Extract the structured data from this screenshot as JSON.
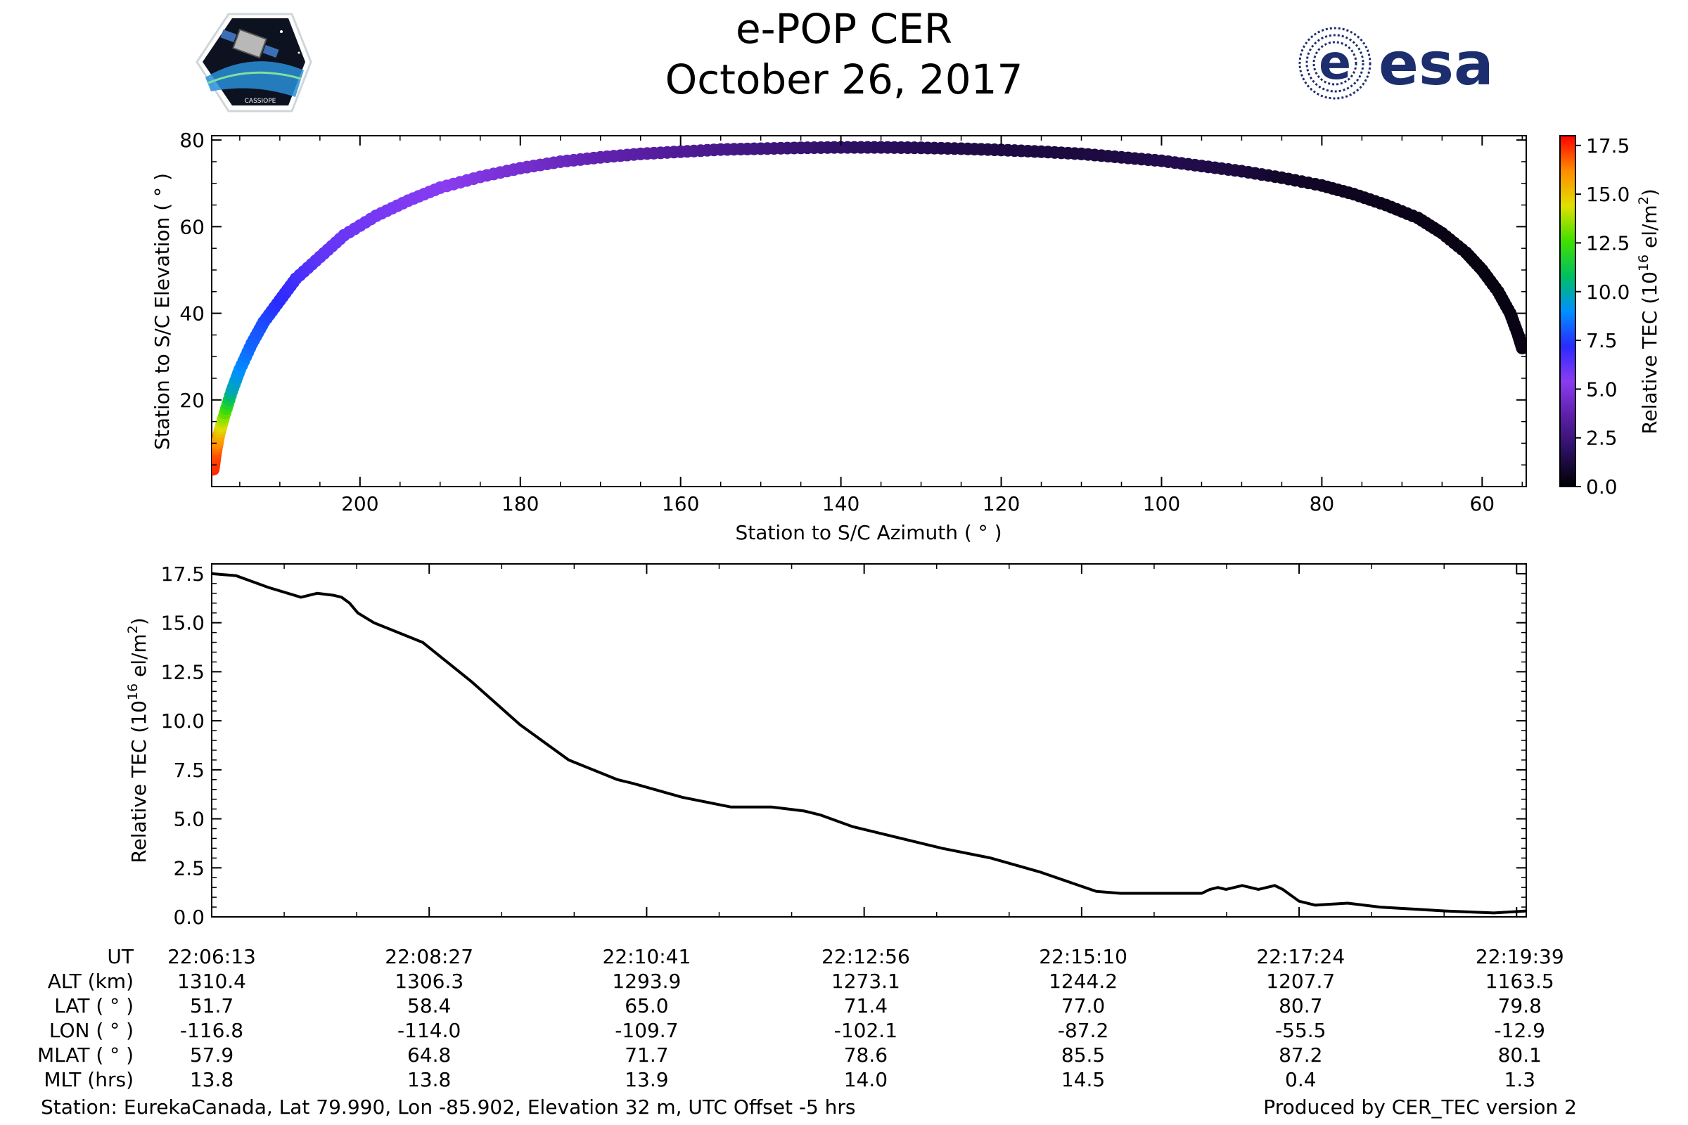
{
  "header": {
    "title": "e-POP CER",
    "date": "October 26, 2017",
    "esa_logo_text": "esa",
    "cassiope_logo_text": "CASSIOPE"
  },
  "colors": {
    "line": "#000000",
    "esa_blue": "#1d2e6e",
    "colormap": [
      "#000000",
      "#2a0f5e",
      "#5b1fa8",
      "#8a3cf0",
      "#2a2aff",
      "#0090ff",
      "#00c060",
      "#40e000",
      "#e0e000",
      "#ff8c00",
      "#ff0000"
    ]
  },
  "chart_data": [
    {
      "type": "scatter",
      "xlabel": "Station to S/C Azimuth ( ° )",
      "ylabel": "Station to S/C Elevation ( ° )",
      "xlim": [
        218.5,
        54.5
      ],
      "ylim": [
        0,
        81
      ],
      "x_inverted": true,
      "xticks": [
        200,
        180,
        160,
        140,
        120,
        100,
        80,
        60
      ],
      "yticks": [
        20,
        40,
        60,
        80
      ],
      "x": [
        218.3,
        218.0,
        217.6,
        217.0,
        216.0,
        215.0,
        213.5,
        212.0,
        210.0,
        208.0,
        205.0,
        202.0,
        198.0,
        194.0,
        190.0,
        185.0,
        180.0,
        175.0,
        170.0,
        165.0,
        160.0,
        155.0,
        150.0,
        145.0,
        140.0,
        135.0,
        130.0,
        125.0,
        120.0,
        115.0,
        110.0,
        105.0,
        100.0,
        95.0,
        90.0,
        85.0,
        80.0,
        76.0,
        72.0,
        68.0,
        65.0,
        62.0,
        60.0,
        58.0,
        56.5,
        55.5,
        55.0
      ],
      "y": [
        4,
        8,
        12,
        16,
        22,
        27,
        33,
        38,
        43,
        48,
        53,
        58,
        62.5,
        66,
        69,
        71.5,
        73.5,
        75,
        76,
        76.8,
        77.3,
        77.8,
        78,
        78.2,
        78.3,
        78.3,
        78.2,
        78,
        77.7,
        77.3,
        76.8,
        76,
        75.2,
        74,
        72.8,
        71.3,
        69.5,
        67.5,
        65,
        62,
        58.5,
        54,
        50,
        45,
        40,
        35,
        32
      ],
      "tec": [
        17.5,
        17.0,
        15.5,
        13.5,
        10.0,
        9.0,
        8.2,
        7.8,
        7.2,
        6.8,
        6.2,
        6.0,
        5.8,
        5.6,
        5.5,
        5.0,
        4.6,
        4.2,
        3.8,
        3.5,
        3.2,
        2.9,
        2.6,
        2.3,
        2.0,
        1.8,
        1.6,
        1.4,
        1.3,
        1.25,
        1.2,
        1.3,
        1.5,
        1.4,
        1.2,
        0.8,
        0.7,
        0.6,
        0.5,
        0.45,
        0.4,
        0.35,
        0.3,
        0.3,
        0.35,
        0.4,
        0.4
      ],
      "colorbar": {
        "label": "Relative TEC (10",
        "label_exp": "16",
        "label_unit": " el/m",
        "label_unit_exp": "2",
        "label_close": ")",
        "range": [
          0,
          18
        ],
        "ticks": [
          "0.0",
          "2.5",
          "5.0",
          "7.5",
          "10.0",
          "12.5",
          "15.0",
          "17.5"
        ]
      }
    },
    {
      "type": "line",
      "xlabel": "",
      "ylabel": "Relative TEC (10",
      "ylabel_exp": "16",
      "ylabel_unit": " el/m",
      "ylabel_unit_exp": "2",
      "ylabel_close": ")",
      "ylim": [
        0,
        18
      ],
      "yticks": [
        "0.0",
        "2.5",
        "5.0",
        "7.5",
        "10.0",
        "12.5",
        "15.0",
        "17.5"
      ],
      "xlim": [
        0,
        810
      ],
      "x": [
        0,
        15,
        35,
        55,
        65,
        75,
        80,
        85,
        90,
        100,
        130,
        160,
        190,
        220,
        250,
        260,
        290,
        320,
        345,
        365,
        375,
        395,
        420,
        450,
        480,
        510,
        545,
        560,
        580,
        590,
        600,
        610,
        615,
        620,
        625,
        630,
        635,
        640,
        645,
        650,
        655,
        660,
        670,
        680,
        700,
        720,
        760,
        790,
        810
      ],
      "y": [
        17.5,
        17.4,
        16.8,
        16.3,
        16.5,
        16.4,
        16.3,
        16.0,
        15.5,
        15.0,
        14.0,
        12.0,
        9.8,
        8.0,
        7.0,
        6.8,
        6.1,
        5.6,
        5.6,
        5.4,
        5.2,
        4.6,
        4.1,
        3.5,
        3.0,
        2.3,
        1.3,
        1.2,
        1.2,
        1.2,
        1.2,
        1.2,
        1.4,
        1.5,
        1.4,
        1.5,
        1.6,
        1.5,
        1.4,
        1.5,
        1.6,
        1.4,
        0.8,
        0.6,
        0.7,
        0.5,
        0.3,
        0.2,
        0.3
      ],
      "xticks": [
        "22:06:13",
        "22:08:27",
        "22:10:41",
        "22:12:56",
        "22:15:10",
        "22:17:24",
        "22:19:39"
      ],
      "xtick_pos": [
        0,
        134,
        268,
        403,
        537,
        671,
        806
      ]
    }
  ],
  "ephemeris": {
    "row_labels": [
      "UT",
      "ALT (km)",
      "LAT ( ° )",
      "LON ( ° )",
      "MLAT ( ° )",
      "MLT (hrs)"
    ],
    "columns": [
      [
        "22:06:13",
        "1310.4",
        "51.7",
        "-116.8",
        "57.9",
        "13.8"
      ],
      [
        "22:08:27",
        "1306.3",
        "58.4",
        "-114.0",
        "64.8",
        "13.8"
      ],
      [
        "22:10:41",
        "1293.9",
        "65.0",
        "-109.7",
        "71.7",
        "13.9"
      ],
      [
        "22:12:56",
        "1273.1",
        "71.4",
        "-102.1",
        "78.6",
        "14.0"
      ],
      [
        "22:15:10",
        "1244.2",
        "77.0",
        "-87.2",
        "85.5",
        "14.5"
      ],
      [
        "22:17:24",
        "1207.7",
        "80.7",
        "-55.5",
        "87.2",
        "0.4"
      ],
      [
        "22:19:39",
        "1163.5",
        "79.8",
        "-12.9",
        "80.1",
        "1.3"
      ]
    ]
  },
  "footer": {
    "station": "Station: EurekaCanada, Lat 79.990, Lon -85.902, Elevation 32 m, UTC Offset -5 hrs",
    "produced_by": "Produced by CER_TEC version 2"
  }
}
